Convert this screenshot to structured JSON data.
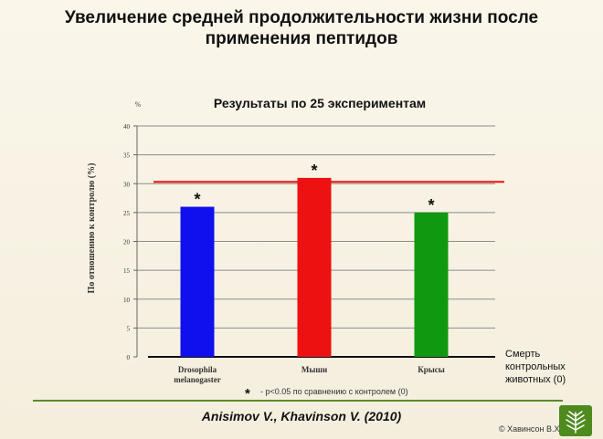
{
  "slide": {
    "title_line1": "Увеличение средней продолжительности жизни после",
    "title_line2": "применения пептидов",
    "citation": "Anisimov V., Khavinson V. (2010)",
    "copyright": "© Хавинсон В.Х."
  },
  "chart_data": {
    "type": "bar",
    "title": "Результаты по 25 экспериментам",
    "ylabel": "По отношению к контролю (%)",
    "yunit": "%",
    "ylim": [
      0,
      40
    ],
    "yticks": [
      0,
      5,
      10,
      15,
      20,
      25,
      30,
      35,
      40
    ],
    "categories": [
      "Drosophila melanogaster",
      "Мыши",
      "Крысы"
    ],
    "category_lines": [
      [
        "Drosophila",
        "melanogaster"
      ],
      [
        "Мыши"
      ],
      [
        "Крысы"
      ]
    ],
    "values": [
      26,
      31,
      25
    ],
    "bar_colors": [
      "#1010ee",
      "#ee1111",
      "#109910"
    ],
    "significance_marks": [
      "*",
      "*",
      "*"
    ],
    "reference_line": {
      "value": 30,
      "color": "#ee1111"
    },
    "baseline_label_lines": [
      "Смерть",
      "контрольных",
      "животных (0)"
    ],
    "footnote_symbol": "*",
    "footnote": "- p<0.05 по сравнению с контролем (0)",
    "grid": true
  }
}
